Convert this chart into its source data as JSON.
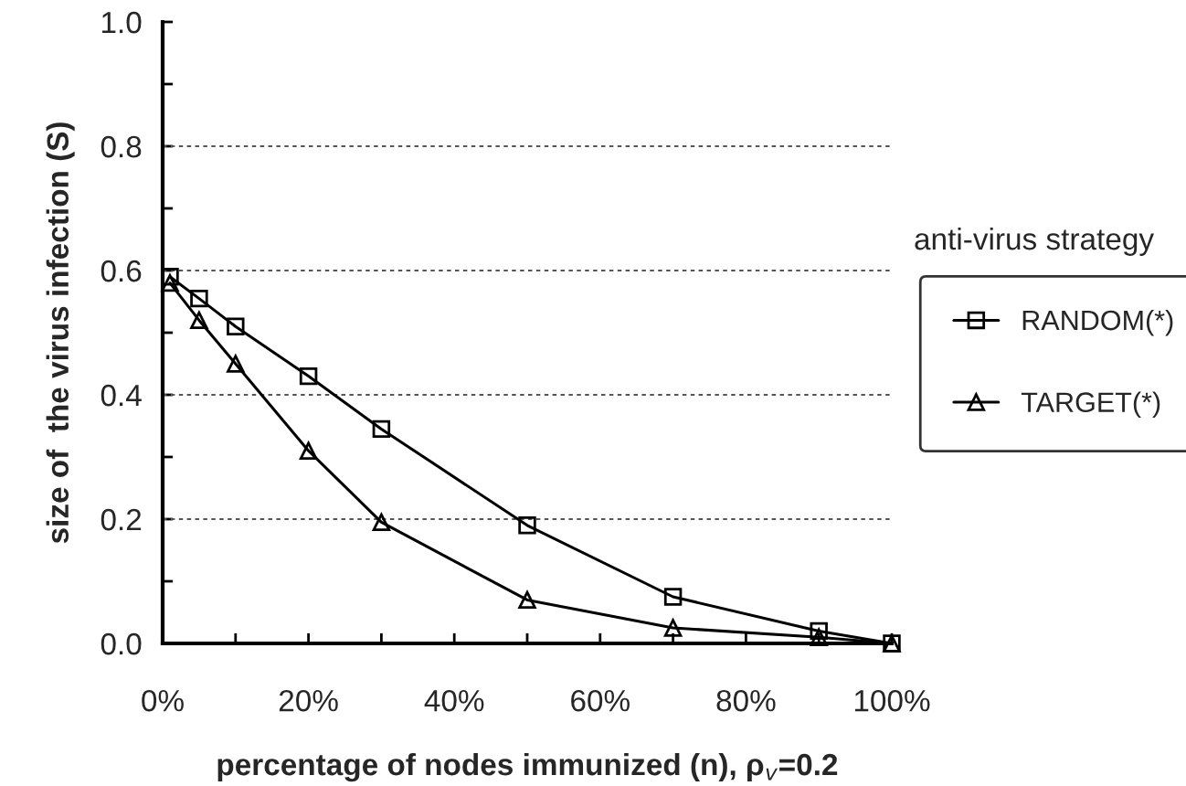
{
  "chart_data": {
    "type": "line",
    "xlabel": "percentage of nodes immunized (n), ρ$_{v}$=0.2",
    "ylabel": "size of  the virus infection (S)",
    "legend_title": "anti-virus strategy",
    "x": [
      1,
      5,
      10,
      20,
      30,
      50,
      70,
      90,
      100
    ],
    "series": [
      {
        "name": "RANDOM(*)",
        "color": "#000000",
        "marker": "square",
        "values": [
          0.59,
          0.555,
          0.51,
          0.43,
          0.345,
          0.19,
          0.075,
          0.02,
          0.0
        ]
      },
      {
        "name": "TARGET(*)",
        "color": "#000000",
        "marker": "triangle",
        "values": [
          0.58,
          0.52,
          0.45,
          0.31,
          0.195,
          0.07,
          0.025,
          0.01,
          0.0
        ]
      }
    ],
    "xlim": [
      0,
      100
    ],
    "xticks": [
      {
        "value": 0,
        "label": "0%"
      },
      {
        "value": 10,
        "label": null
      },
      {
        "value": 20,
        "label": "20%"
      },
      {
        "value": 30,
        "label": null
      },
      {
        "value": 40,
        "label": "40%"
      },
      {
        "value": 50,
        "label": null
      },
      {
        "value": 60,
        "label": "60%"
      },
      {
        "value": 70,
        "label": null
      },
      {
        "value": 80,
        "label": "80%"
      },
      {
        "value": 90,
        "label": null
      },
      {
        "value": 100,
        "label": "100%"
      }
    ],
    "ylim": [
      0,
      1.0
    ],
    "yticks": [
      {
        "value": 0,
        "label": "0.0"
      },
      {
        "value": 0.1,
        "label": null
      },
      {
        "value": 0.2,
        "label": "0.2"
      },
      {
        "value": 0.3,
        "label": null
      },
      {
        "value": 0.4,
        "label": "0.4"
      },
      {
        "value": 0.5,
        "label": null
      },
      {
        "value": 0.6,
        "label": "0.6"
      },
      {
        "value": 0.7,
        "label": null
      },
      {
        "value": 0.8,
        "label": "0.8"
      },
      {
        "value": 0.9,
        "label": null
      },
      {
        "value": 1.0,
        "label": "1.0"
      }
    ],
    "grid": "y",
    "legend": "right",
    "line_style": "solid"
  }
}
